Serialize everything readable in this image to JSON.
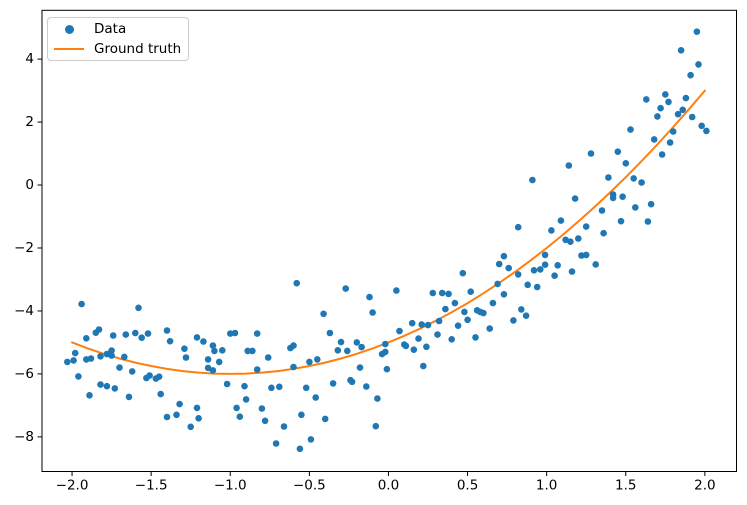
{
  "figure": {
    "background": "#ffffff"
  },
  "colors": {
    "data_points": "#1f77b4",
    "ground_truth": "#ff7f0e",
    "frame": "#000000",
    "legend_border": "#cccccc"
  },
  "legend": {
    "items": [
      {
        "label": "Data",
        "marker": "dot",
        "color": "#1f77b4"
      },
      {
        "label": "Ground truth",
        "marker": "line",
        "color": "#ff7f0e"
      }
    ]
  },
  "chart_data": {
    "type": "scatter",
    "title": "",
    "xlabel": "",
    "ylabel": "",
    "grid": false,
    "legend_position": "upper left",
    "xlim": [
      -2.19,
      2.2
    ],
    "ylim": [
      -9.1,
      5.55
    ],
    "x_ticks": {
      "values": [
        -2.0,
        -1.5,
        -1.0,
        -0.5,
        0.0,
        0.5,
        1.0,
        1.5,
        2.0
      ],
      "labels": [
        "−2.0",
        "−1.5",
        "−1.0",
        "−0.5",
        "0.0",
        "0.5",
        "1.0",
        "1.5",
        "2.0"
      ]
    },
    "y_ticks": {
      "values": [
        -8,
        -6,
        -4,
        -2,
        0,
        2,
        4
      ],
      "labels": [
        "−8",
        "−6",
        "−4",
        "−2",
        "0",
        "2",
        "4"
      ]
    },
    "series": [
      {
        "name": "Data",
        "type": "scatter",
        "color": "#1f77b4",
        "points": [
          [
            -1.94,
            -3.78
          ],
          [
            -1.58,
            -3.9
          ],
          [
            -1.91,
            -4.87
          ],
          [
            -1.85,
            -4.69
          ],
          [
            -1.83,
            -4.59
          ],
          [
            -1.74,
            -4.78
          ],
          [
            -1.66,
            -4.75
          ],
          [
            -1.6,
            -4.7
          ],
          [
            -1.56,
            -4.85
          ],
          [
            -1.52,
            -4.72
          ],
          [
            -1.4,
            -4.62
          ],
          [
            -1.38,
            -4.96
          ],
          [
            -1.98,
            -5.34
          ],
          [
            -1.99,
            -5.57
          ],
          [
            -2.03,
            -5.62
          ],
          [
            -1.91,
            -5.54
          ],
          [
            -1.88,
            -5.51
          ],
          [
            -1.82,
            -5.44
          ],
          [
            -1.78,
            -5.37
          ],
          [
            -1.75,
            -5.26
          ],
          [
            -1.75,
            -5.42
          ],
          [
            -1.67,
            -5.46
          ],
          [
            -1.7,
            -5.8
          ],
          [
            -1.62,
            -5.92
          ],
          [
            -1.96,
            -6.08
          ],
          [
            -1.53,
            -6.13
          ],
          [
            -1.51,
            -6.05
          ],
          [
            -1.47,
            -6.15
          ],
          [
            -1.45,
            -6.09
          ],
          [
            -1.29,
            -5.2
          ],
          [
            -1.28,
            -5.48
          ],
          [
            -1.21,
            -4.84
          ],
          [
            -1.17,
            -4.97
          ],
          [
            -1.14,
            -5.54
          ],
          [
            -1.11,
            -5.1
          ],
          [
            -1.1,
            -5.27
          ],
          [
            -1.07,
            -5.62
          ],
          [
            -1.14,
            -5.81
          ],
          [
            -1.11,
            -5.89
          ],
          [
            -1.89,
            -6.68
          ],
          [
            -1.82,
            -6.34
          ],
          [
            -1.78,
            -6.39
          ],
          [
            -1.73,
            -6.46
          ],
          [
            -1.64,
            -6.73
          ],
          [
            -1.44,
            -6.64
          ],
          [
            -1.32,
            -6.96
          ],
          [
            -1.21,
            -7.08
          ],
          [
            -1.4,
            -7.37
          ],
          [
            -1.34,
            -7.3
          ],
          [
            -1.25,
            -7.68
          ],
          [
            -1.2,
            -7.41
          ],
          [
            -0.58,
            -3.12
          ],
          [
            -0.27,
            -3.29
          ],
          [
            -0.12,
            -3.56
          ],
          [
            0.05,
            -3.35
          ],
          [
            -0.41,
            -4.09
          ],
          [
            -0.1,
            -4.05
          ],
          [
            -1.0,
            -4.72
          ],
          [
            -0.97,
            -4.7
          ],
          [
            -0.83,
            -4.72
          ],
          [
            -0.37,
            -4.7
          ],
          [
            0.07,
            -4.64
          ],
          [
            -1.05,
            -5.25
          ],
          [
            -0.89,
            -5.27
          ],
          [
            -0.86,
            -5.27
          ],
          [
            -0.76,
            -5.48
          ],
          [
            -0.62,
            -5.18
          ],
          [
            -0.6,
            -5.1
          ],
          [
            -0.5,
            -5.62
          ],
          [
            -0.45,
            -5.54
          ],
          [
            -0.32,
            -5.25
          ],
          [
            -0.3,
            -4.99
          ],
          [
            -0.26,
            -5.27
          ],
          [
            -0.2,
            -5.0
          ],
          [
            -0.17,
            -5.15
          ],
          [
            -0.02,
            -5.05
          ],
          [
            -0.02,
            -5.3
          ],
          [
            -0.04,
            -5.37
          ],
          [
            -0.83,
            -5.86
          ],
          [
            -0.6,
            -5.78
          ],
          [
            -0.18,
            -5.8
          ],
          [
            -0.01,
            -5.85
          ],
          [
            -1.02,
            -6.32
          ],
          [
            -0.91,
            -6.39
          ],
          [
            -0.74,
            -6.44
          ],
          [
            -0.69,
            -6.41
          ],
          [
            -0.52,
            -6.44
          ],
          [
            -0.35,
            -6.3
          ],
          [
            -0.24,
            -6.2
          ],
          [
            -0.23,
            -6.25
          ],
          [
            -0.14,
            -6.4
          ],
          [
            -0.9,
            -6.81
          ],
          [
            -0.46,
            -6.75
          ],
          [
            -0.07,
            -6.78
          ],
          [
            -0.96,
            -7.08
          ],
          [
            -0.8,
            -7.1
          ],
          [
            -0.94,
            -7.36
          ],
          [
            -0.78,
            -7.49
          ],
          [
            -0.55,
            -7.3
          ],
          [
            -0.4,
            -7.43
          ],
          [
            -0.66,
            -7.67
          ],
          [
            -0.08,
            -7.66
          ],
          [
            -0.71,
            -8.21
          ],
          [
            -0.49,
            -8.08
          ],
          [
            -0.56,
            -8.38
          ],
          [
            0.73,
            -2.26
          ],
          [
            0.7,
            -2.51
          ],
          [
            0.76,
            -2.64
          ],
          [
            0.82,
            -2.84
          ],
          [
            0.47,
            -2.8
          ],
          [
            0.92,
            -2.71
          ],
          [
            0.96,
            -2.68
          ],
          [
            0.99,
            -2.53
          ],
          [
            1.05,
            -2.88
          ],
          [
            1.07,
            -2.55
          ],
          [
            1.16,
            -2.75
          ],
          [
            0.69,
            -3.14
          ],
          [
            0.88,
            -3.17
          ],
          [
            0.94,
            -3.24
          ],
          [
            0.28,
            -3.43
          ],
          [
            0.34,
            -3.43
          ],
          [
            0.38,
            -3.46
          ],
          [
            0.52,
            -3.39
          ],
          [
            0.73,
            -3.47
          ],
          [
            0.36,
            -3.94
          ],
          [
            0.42,
            -3.75
          ],
          [
            0.48,
            -4.03
          ],
          [
            0.56,
            -3.98
          ],
          [
            0.58,
            -4.03
          ],
          [
            0.6,
            -4.07
          ],
          [
            0.66,
            -3.75
          ],
          [
            0.79,
            -4.3
          ],
          [
            0.84,
            -3.95
          ],
          [
            0.87,
            -4.15
          ],
          [
            0.15,
            -4.39
          ],
          [
            0.21,
            -4.43
          ],
          [
            0.25,
            -4.45
          ],
          [
            0.32,
            -4.32
          ],
          [
            0.44,
            -4.47
          ],
          [
            0.5,
            -4.28
          ],
          [
            0.64,
            -4.56
          ],
          [
            0.19,
            -4.88
          ],
          [
            0.31,
            -4.75
          ],
          [
            0.4,
            -4.9
          ],
          [
            0.55,
            -4.84
          ],
          [
            0.1,
            -5.07
          ],
          [
            0.11,
            -5.11
          ],
          [
            0.16,
            -5.23
          ],
          [
            0.24,
            -5.14
          ],
          [
            0.22,
            -5.75
          ],
          [
            1.95,
            4.87
          ],
          [
            1.85,
            4.28
          ],
          [
            1.96,
            3.83
          ],
          [
            1.91,
            3.49
          ],
          [
            1.88,
            2.76
          ],
          [
            1.75,
            2.88
          ],
          [
            1.77,
            2.64
          ],
          [
            1.63,
            2.72
          ],
          [
            1.72,
            2.44
          ],
          [
            1.86,
            2.39
          ],
          [
            1.7,
            2.18
          ],
          [
            1.83,
            2.25
          ],
          [
            1.92,
            2.16
          ],
          [
            1.98,
            1.88
          ],
          [
            2.01,
            1.72
          ],
          [
            1.53,
            1.76
          ],
          [
            1.68,
            1.45
          ],
          [
            1.78,
            1.35
          ],
          [
            1.8,
            1.7
          ],
          [
            1.28,
            1.0
          ],
          [
            1.45,
            1.06
          ],
          [
            1.73,
            0.97
          ],
          [
            1.5,
            0.69
          ],
          [
            1.14,
            0.62
          ],
          [
            0.91,
            0.16
          ],
          [
            1.39,
            0.24
          ],
          [
            1.55,
            0.21
          ],
          [
            1.6,
            0.08
          ],
          [
            1.42,
            -0.3
          ],
          [
            1.42,
            -0.41
          ],
          [
            1.48,
            -0.37
          ],
          [
            1.18,
            -0.43
          ],
          [
            1.35,
            -0.81
          ],
          [
            1.56,
            -0.71
          ],
          [
            1.66,
            -0.61
          ],
          [
            1.09,
            -1.13
          ],
          [
            1.25,
            -1.32
          ],
          [
            1.47,
            -1.15
          ],
          [
            1.64,
            -1.16
          ],
          [
            0.82,
            -1.34
          ],
          [
            1.03,
            -1.44
          ],
          [
            1.36,
            -1.53
          ],
          [
            1.12,
            -1.74
          ],
          [
            1.15,
            -1.8
          ],
          [
            1.2,
            -1.7
          ],
          [
            0.99,
            -2.22
          ],
          [
            1.22,
            -2.24
          ],
          [
            1.25,
            -2.22
          ],
          [
            1.31,
            -2.52
          ]
        ]
      },
      {
        "name": "Ground truth",
        "type": "line",
        "color": "#ff7f0e",
        "formula": "y = x^2 + 2x - 5",
        "x_range": [
          -2,
          2
        ],
        "points": [
          [
            -2.0,
            -5.0
          ],
          [
            -1.9,
            -5.19
          ],
          [
            -1.8,
            -5.36
          ],
          [
            -1.7,
            -5.51
          ],
          [
            -1.6,
            -5.64
          ],
          [
            -1.5,
            -5.75
          ],
          [
            -1.4,
            -5.84
          ],
          [
            -1.3,
            -5.91
          ],
          [
            -1.2,
            -5.96
          ],
          [
            -1.1,
            -5.99
          ],
          [
            -1.0,
            -6.0
          ],
          [
            -0.9,
            -5.99
          ],
          [
            -0.8,
            -5.96
          ],
          [
            -0.7,
            -5.91
          ],
          [
            -0.6,
            -5.84
          ],
          [
            -0.5,
            -5.75
          ],
          [
            -0.4,
            -5.64
          ],
          [
            -0.3,
            -5.51
          ],
          [
            -0.2,
            -5.36
          ],
          [
            -0.1,
            -5.19
          ],
          [
            0.0,
            -5.0
          ],
          [
            0.1,
            -4.79
          ],
          [
            0.2,
            -4.56
          ],
          [
            0.3,
            -4.31
          ],
          [
            0.4,
            -4.04
          ],
          [
            0.5,
            -3.75
          ],
          [
            0.6,
            -3.44
          ],
          [
            0.7,
            -3.11
          ],
          [
            0.8,
            -2.76
          ],
          [
            0.9,
            -2.39
          ],
          [
            1.0,
            -2.0
          ],
          [
            1.1,
            -1.59
          ],
          [
            1.2,
            -1.16
          ],
          [
            1.3,
            -0.71
          ],
          [
            1.4,
            -0.24
          ],
          [
            1.5,
            0.25
          ],
          [
            1.6,
            0.76
          ],
          [
            1.7,
            1.29
          ],
          [
            1.8,
            1.84
          ],
          [
            1.9,
            2.41
          ],
          [
            2.0,
            3.0
          ]
        ]
      }
    ]
  }
}
